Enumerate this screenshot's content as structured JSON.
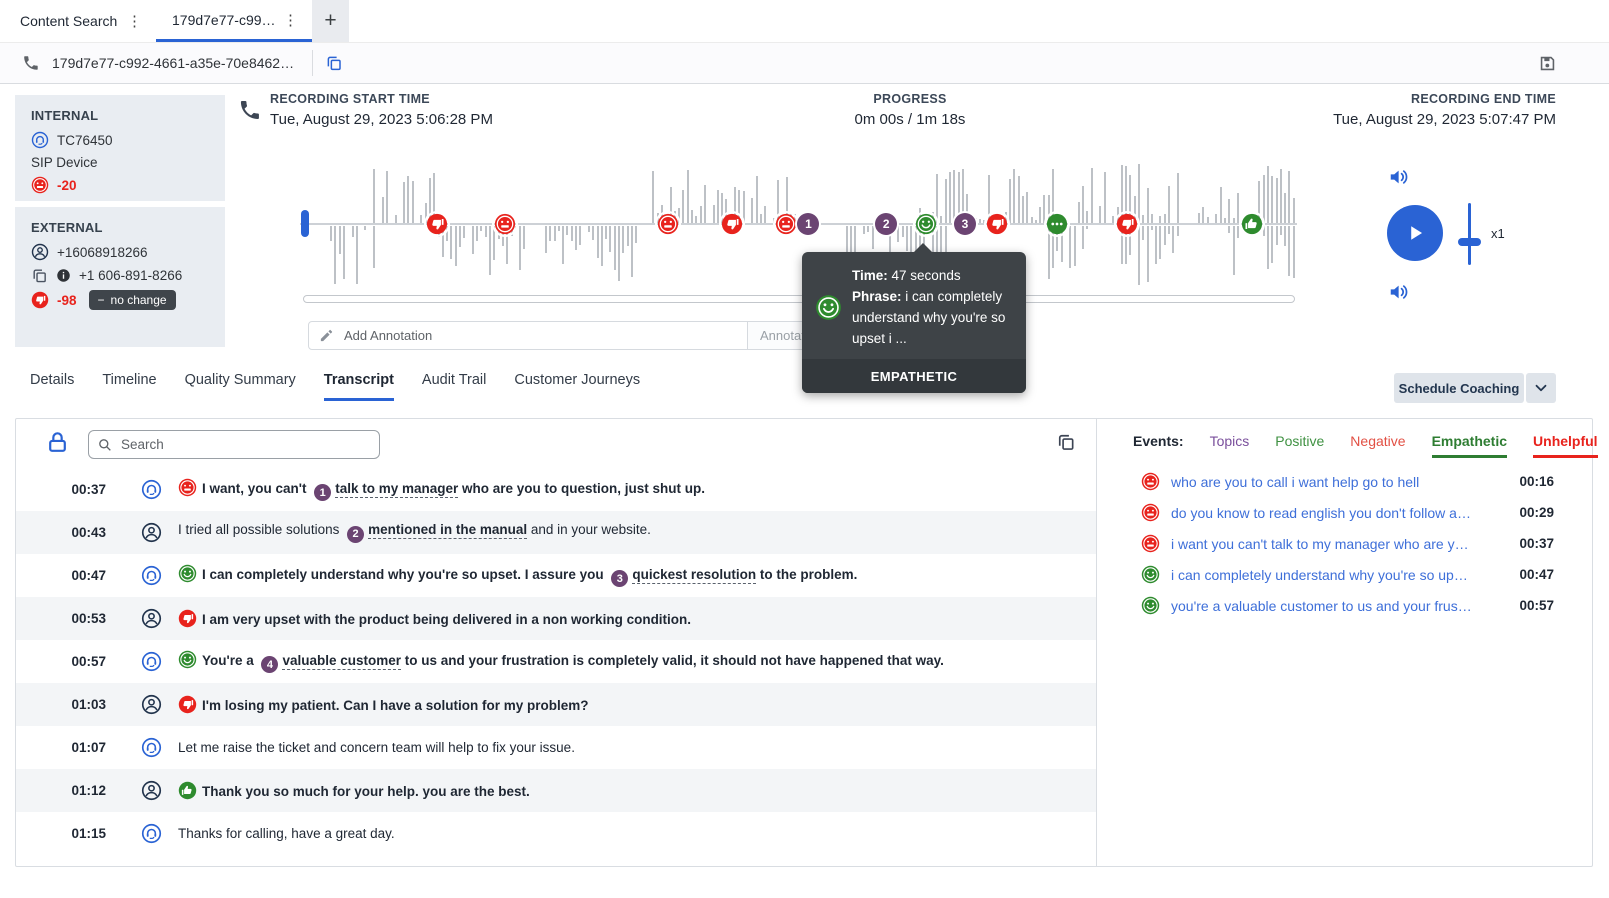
{
  "colors": {
    "blue": "#2a63d4",
    "red": "#e8231d",
    "green": "#2e8b2e",
    "purple": "#6b4472",
    "link": "#3e6fd9"
  },
  "icons": {
    "kebab": "⋮",
    "plus": "+",
    "minus": "−"
  },
  "tabs": {
    "content_search": "Content Search",
    "call_tab": "179d7e77-c99…"
  },
  "id_bar": {
    "id_text": "179d7e77-c992-4661-a35e-70e8462…"
  },
  "parties": {
    "internal": {
      "title": "INTERNAL",
      "name": "TC76450",
      "device": "SIP Device",
      "score": "-20"
    },
    "external": {
      "title": "EXTERNAL",
      "number": "+16068918266",
      "formatted": "+1 606-891-8266",
      "score": "-98",
      "badge": "no change"
    }
  },
  "recording": {
    "start_label": "RECORDING START TIME",
    "start_value": "Tue, August 29, 2023 5:06:28 PM",
    "progress_label": "PROGRESS",
    "progress_value": "0m 00s / 1m 18s",
    "end_label": "RECORDING END TIME",
    "end_value": "Tue, August 29, 2023 5:07:47 PM"
  },
  "player": {
    "speed_label": "x1"
  },
  "annotation": {
    "placeholder": "Add Annotation",
    "type_placeholder": "Annotat"
  },
  "tooltip": {
    "time_label": "Time:",
    "time_value": "47 seconds",
    "phrase_label": "Phrase:",
    "phrase_value": "i can completely understand why you're so upset i ...",
    "category": "EMPATHETIC"
  },
  "waveform": {
    "markers": [
      {
        "pos": 13.7,
        "type": "thumbs-down"
      },
      {
        "pos": 20.6,
        "type": "angry"
      },
      {
        "pos": 36.9,
        "type": "angry"
      },
      {
        "pos": 43.3,
        "type": "thumbs-down"
      },
      {
        "pos": 48.7,
        "type": "angry"
      },
      {
        "pos": 51.0,
        "type": "number",
        "label": "1"
      },
      {
        "pos": 58.8,
        "type": "number",
        "label": "2"
      },
      {
        "pos": 62.8,
        "type": "smiley"
      },
      {
        "pos": 66.7,
        "type": "number",
        "label": "3"
      },
      {
        "pos": 69.9,
        "type": "thumbs-down"
      },
      {
        "pos": 75.9,
        "type": "ellipsis"
      },
      {
        "pos": 82.9,
        "type": "thumbs-down"
      },
      {
        "pos": 95.5,
        "type": "thumbs-up"
      }
    ]
  },
  "nav_tabs": {
    "items": [
      "Details",
      "Timeline",
      "Quality Summary",
      "Transcript",
      "Audit Trail",
      "Customer Journeys"
    ],
    "active": "Transcript"
  },
  "coaching": {
    "label": "Schedule Coaching"
  },
  "transcript": {
    "search_placeholder": "Search",
    "rows": [
      {
        "time": "00:37",
        "speaker": "agent",
        "badge": "angry",
        "bold": true,
        "parts": [
          {
            "text": "I want, you can't "
          },
          {
            "num": "1"
          },
          {
            "text": "talk to my manager",
            "underline": true
          },
          {
            "text": " who are you to question, just shut up."
          }
        ]
      },
      {
        "time": "00:43",
        "speaker": "customer",
        "badge": null,
        "bold": false,
        "parts": [
          {
            "text": "I tried all possible solutions "
          },
          {
            "num": "2"
          },
          {
            "text": "mentioned in the manual",
            "underline": true,
            "bold": true
          },
          {
            "text": " and in your website."
          }
        ]
      },
      {
        "time": "00:47",
        "speaker": "agent",
        "badge": "smiley",
        "bold": true,
        "parts": [
          {
            "text": "I can completely understand why you're so upset. I assure you "
          },
          {
            "num": "3"
          },
          {
            "text": "quickest resolution",
            "underline": true
          },
          {
            "text": " to the problem."
          }
        ]
      },
      {
        "time": "00:53",
        "speaker": "customer",
        "badge": "thumbs-down",
        "bold": true,
        "parts": [
          {
            "text": "I am very upset with the product being delivered in a non working condition."
          }
        ]
      },
      {
        "time": "00:57",
        "speaker": "agent",
        "badge": "smiley",
        "bold": true,
        "parts": [
          {
            "text": "You're a "
          },
          {
            "num": "4"
          },
          {
            "text": "valuable customer",
            "underline": true
          },
          {
            "text": " to us and your frustration is completely valid, it should not have happened that way."
          }
        ]
      },
      {
        "time": "01:03",
        "speaker": "customer",
        "badge": "thumbs-down",
        "bold": true,
        "parts": [
          {
            "text": "I'm losing my patient. Can I have a solution for my problem?"
          }
        ]
      },
      {
        "time": "01:07",
        "speaker": "agent",
        "badge": null,
        "bold": false,
        "parts": [
          {
            "text": "Let me raise the ticket and concern team will help to fix your issue."
          }
        ]
      },
      {
        "time": "01:12",
        "speaker": "customer",
        "badge": "thumbs-up",
        "bold": true,
        "parts": [
          {
            "text": "Thank you so much for your help. you are the best."
          }
        ]
      },
      {
        "time": "01:15",
        "speaker": "agent",
        "badge": null,
        "bold": false,
        "parts": [
          {
            "text": "Thanks for calling, have a great day."
          }
        ]
      }
    ]
  },
  "events": {
    "label": "Events:",
    "filters": [
      {
        "label": "Topics",
        "color": "#7a4f9c",
        "active": false
      },
      {
        "label": "Positive",
        "color": "#3f9142",
        "active": false
      },
      {
        "label": "Negative",
        "color": "#e25044",
        "active": false
      },
      {
        "label": "Empathetic",
        "color": "#2e7d32",
        "active": true
      },
      {
        "label": "Unhelpful",
        "color": "#e8231d",
        "active": true
      }
    ],
    "items": [
      {
        "icon": "angry",
        "text": "who are you to call i want help go to hell",
        "time": "00:16"
      },
      {
        "icon": "angry",
        "text": "do you know to read english you don't follow a…",
        "time": "00:29"
      },
      {
        "icon": "angry",
        "text": "i want you can't talk to my manager who are y…",
        "time": "00:37"
      },
      {
        "icon": "smiley",
        "text": "i can completely understand why you're so up…",
        "time": "00:47"
      },
      {
        "icon": "smiley",
        "text": "you're a valuable customer to us and your frus…",
        "time": "00:57"
      }
    ]
  }
}
